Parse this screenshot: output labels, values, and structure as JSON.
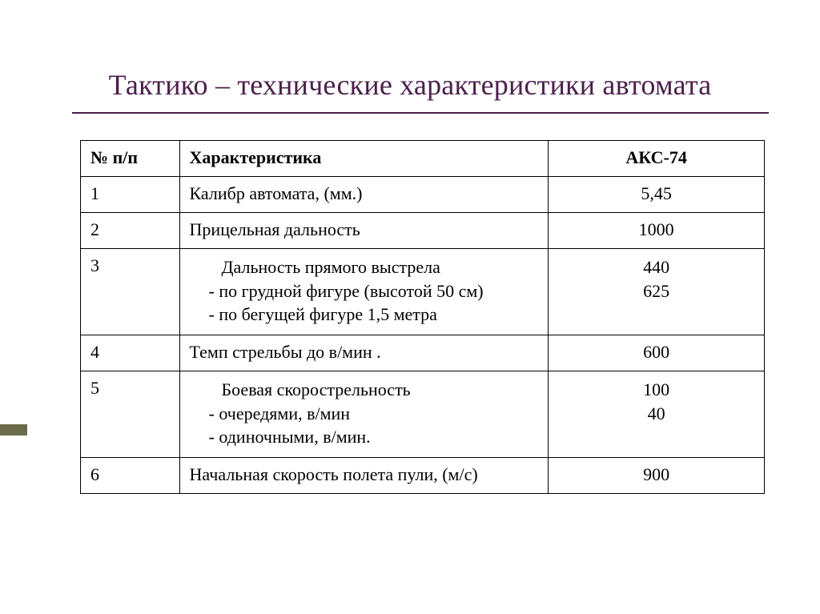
{
  "title": "Тактико – технические характеристики автомата",
  "colors": {
    "title_color": "#4a1f4a",
    "underline_color": "#4a1f4a",
    "side_bullet_color": "#6b6b4b",
    "text_color": "#000000",
    "border_color": "#000000",
    "background": "#ffffff"
  },
  "table": {
    "header": {
      "num": "№ п/п",
      "char": "Характеристика",
      "val": "АКС-74"
    },
    "rows": [
      {
        "num": "1",
        "char_main": "Калибр автомата, (мм.)",
        "val_main": "5,45"
      },
      {
        "num": "2",
        "char_main": "Прицельная дальность",
        "val_main": "1000"
      },
      {
        "num": "3",
        "char_main": "Дальность прямого выстрела",
        "char_sub1": "-  по грудной фигуре (высотой 50 см)",
        "char_sub2": "-  по бегущей фигуре 1,5 метра",
        "val_main": "440",
        "val_sub": "625"
      },
      {
        "num": "4",
        "char_main": "Темп стрельбы до в/мин .",
        "val_main": "600"
      },
      {
        "num": "5",
        "char_main": "Боевая скорострельность",
        "char_sub1": "- очередями, в/мин",
        "char_sub2": "- одиночными, в/мин.",
        "val_main": "100",
        "val_sub": "40"
      },
      {
        "num": "6",
        "char_main": "Начальная скорость полета пули, (м/с)",
        "val_main": "900"
      }
    ]
  }
}
